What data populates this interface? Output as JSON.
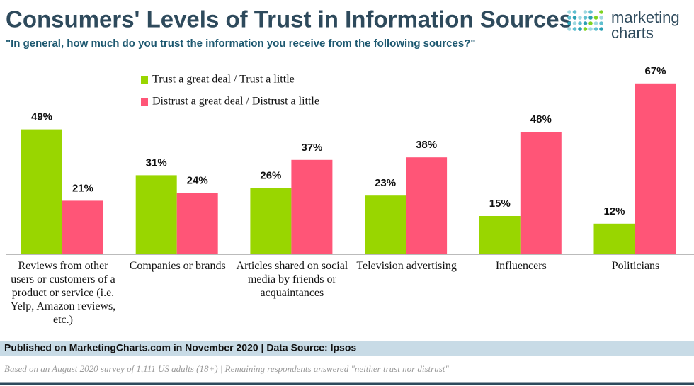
{
  "chart_data": {
    "type": "bar",
    "title": "Consumers' Levels of Trust in Information Sources",
    "subtitle": "\"In general, how much do you trust the information you receive from the following sources?\"",
    "categories": [
      "Reviews from other users or customers of a product or service (i.e. Yelp, Amazon reviews, etc.)",
      "Companies or brands",
      "Articles shared on social media by friends or acquaintances",
      "Television advertising",
      "Influencers",
      "Politicians"
    ],
    "series": [
      {
        "name": "Trust a great deal / Trust a little",
        "color": "#99d600",
        "values": [
          49,
          31,
          26,
          23,
          15,
          12
        ],
        "value_labels": [
          "49%",
          "31%",
          "26%",
          "23%",
          "15%",
          "12%"
        ]
      },
      {
        "name": "Distrust a great deal / Distrust a little",
        "color": "#ff5577",
        "values": [
          21,
          24,
          37,
          38,
          48,
          67
        ],
        "value_labels": [
          "21%",
          "24%",
          "37%",
          "38%",
          "48%",
          "67%"
        ]
      }
    ],
    "source": "Published on MarketingCharts.com in November 2020 | Data Source: Ipsos",
    "note": "Based on an August 2020 survey of 1,111 US adults (18+) | Remaining respondents answered \"neither trust nor distrust\""
  },
  "logo": {
    "line1": "marketing",
    "line2": "charts"
  }
}
